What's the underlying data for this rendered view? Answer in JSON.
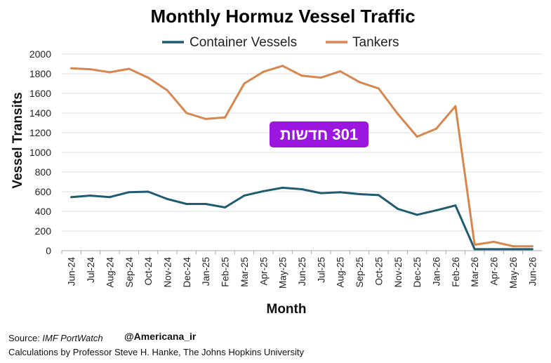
{
  "chart_data": {
    "type": "line",
    "title": "Monthly Hormuz Vessel Traffic",
    "xlabel": "Month",
    "ylabel": "Vessel Transits",
    "ylim": [
      0,
      2000
    ],
    "yticks": [
      0,
      200,
      400,
      600,
      800,
      1000,
      1200,
      1400,
      1600,
      1800,
      2000
    ],
    "grid": "horizontal",
    "legend_position": "top",
    "categories": [
      "Jun-24",
      "Jul-24",
      "Aug-24",
      "Sep-24",
      "Oct-24",
      "Nov-24",
      "Dec-24",
      "Jan-25",
      "Feb-25",
      "Mar-25",
      "Apr-25",
      "May-25",
      "Jun-25",
      "Jul-25",
      "Aug-25",
      "Sep-25",
      "Oct-25",
      "Nov-25",
      "Dec-25",
      "Jan-26",
      "Feb-26",
      "Mar-26",
      "Apr-26",
      "May-26",
      "Jun-26"
    ],
    "series": [
      {
        "name": "Container Vessels",
        "color": "#1f5c73",
        "values": [
          545,
          560,
          545,
          595,
          600,
          525,
          475,
          475,
          440,
          560,
          605,
          640,
          625,
          585,
          595,
          575,
          565,
          425,
          365,
          410,
          460,
          15,
          15,
          15,
          15
        ]
      },
      {
        "name": "Tankers",
        "color": "#d5874f",
        "values": [
          1855,
          1845,
          1815,
          1850,
          1760,
          1630,
          1400,
          1340,
          1355,
          1700,
          1820,
          1880,
          1780,
          1760,
          1825,
          1715,
          1650,
          1390,
          1160,
          1240,
          1470,
          60,
          90,
          45,
          45
        ]
      }
    ]
  },
  "annotation": {
    "text": "301 חדשות",
    "background": "#9b17e0"
  },
  "footer": {
    "source_label": "Source: ",
    "source_value": "IMF PortWatch",
    "handle": "@Americana_ir",
    "calc": "Calculations by Professor Steve H. Hanke, The Johns Hopkins University"
  }
}
